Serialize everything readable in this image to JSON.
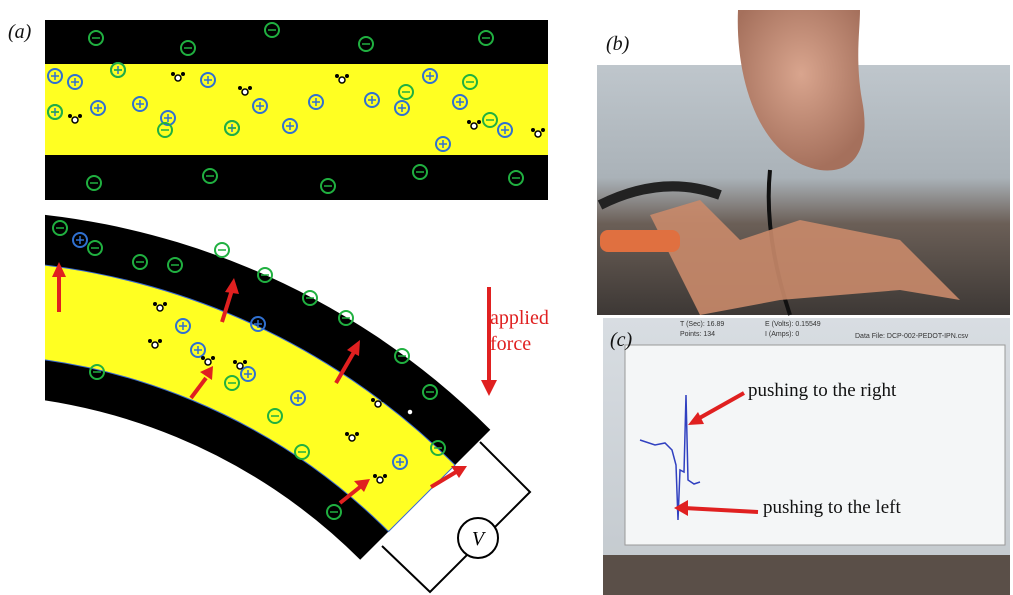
{
  "panel_a": {
    "label": "(a)",
    "annotation": "applied force",
    "meter": "V"
  },
  "panel_b": {
    "label": "(b)"
  },
  "panel_c": {
    "label": "(c)",
    "screen_texts": [
      "T (Sec): 16.89",
      "E (Volts): 0.15549",
      "Points: 134",
      "I (Amps): 0",
      "Data File: DCP-002-PEDOT-IPN.csv"
    ],
    "annotations": [
      "pushing to the right",
      "pushing to the left"
    ]
  }
}
